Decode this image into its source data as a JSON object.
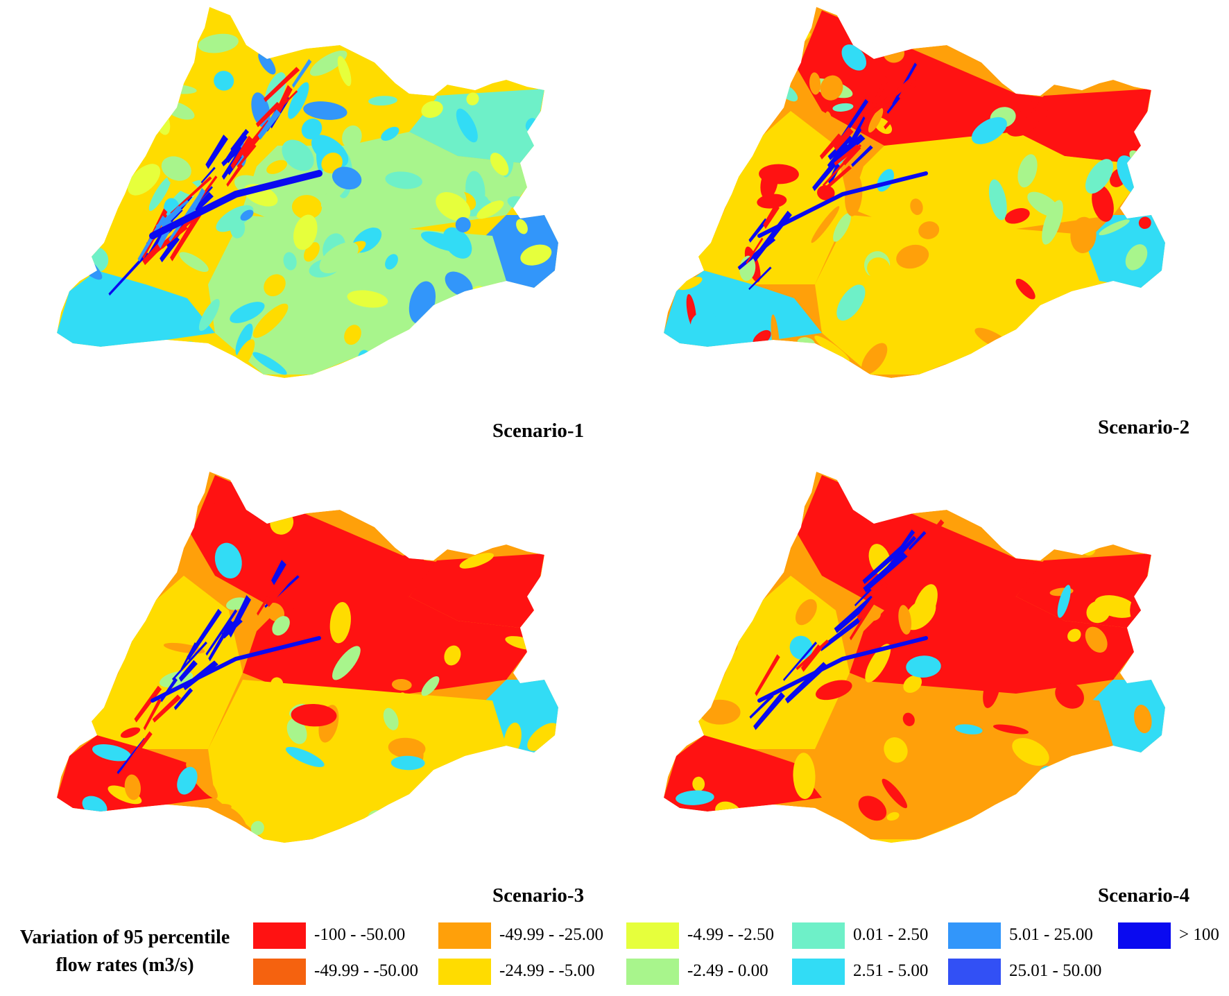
{
  "colors": {
    "red": "#ff1212",
    "red_orange": "#f5620f",
    "orange": "#ffa00a",
    "yellow": "#ffdc00",
    "yellow_green": "#e6ff3c",
    "light_green": "#a8f58c",
    "aquamarine": "#6ef0c8",
    "cyan": "#32dcf5",
    "sky_blue": "#3296fa",
    "royal_blue": "#3250f5",
    "blue": "#0a0af0"
  },
  "maps": [
    {
      "label": "Scenario-1",
      "scheme": "s1"
    },
    {
      "label": "Scenario-2",
      "scheme": "s2"
    },
    {
      "label": "Scenario-3",
      "scheme": "s3"
    },
    {
      "label": "Scenario-4",
      "scheme": "s4"
    }
  ],
  "legend": {
    "title_line1": "Variation of 95 percentile",
    "title_line2": "flow rates (m3/s)",
    "items": [
      {
        "label": "-100 - -50.00",
        "color": "#ff1212"
      },
      {
        "label": "-49.99 - -50.00",
        "color": "#f5620f"
      },
      {
        "label": "-49.99 - -25.00",
        "color": "#ffa00a"
      },
      {
        "label": "-24.99 - -5.00",
        "color": "#ffdc00"
      },
      {
        "label": "-4.99 - -2.50",
        "color": "#e6ff3c"
      },
      {
        "label": "-2.49 - 0.00",
        "color": "#a8f58c"
      },
      {
        "label": "0.01 - 2.50",
        "color": "#6ef0c8"
      },
      {
        "label": "2.51 - 5.00",
        "color": "#32dcf5"
      },
      {
        "label": "5.01 - 25.00",
        "color": "#3296fa"
      },
      {
        "label": "25.01 - 50.00",
        "color": "#3250f5"
      },
      {
        "label": "> 100",
        "color": "#0a0af0"
      }
    ]
  }
}
